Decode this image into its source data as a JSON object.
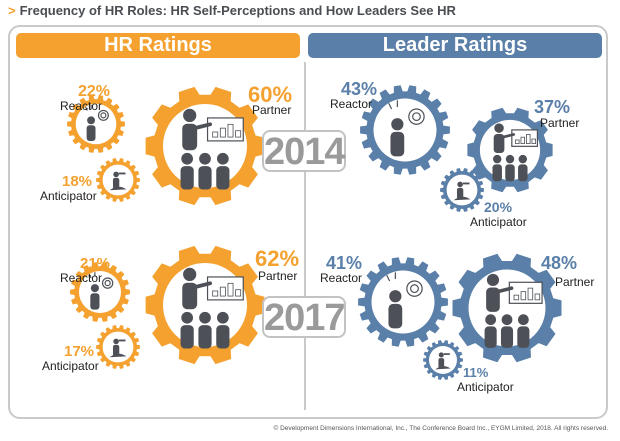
{
  "title": {
    "marker": ">",
    "text": "Frequency of HR Roles: HR Self-Perceptions and How Leaders See HR"
  },
  "colors": {
    "hr": "#f4a12f",
    "leader": "#5a7fa8",
    "icon": "#4d5157",
    "year": "#9a9a9a"
  },
  "headers": {
    "hr": "HR Ratings",
    "leader": "Leader Ratings"
  },
  "years": [
    "2014",
    "2017"
  ],
  "groups": [
    {
      "side": "hr",
      "year": "2014",
      "reactor": {
        "label": "Reactor",
        "pct": "22%"
      },
      "partner": {
        "label": "Partner",
        "pct": "60%"
      },
      "anticipator": {
        "label": "Anticipator",
        "pct": "18%"
      }
    },
    {
      "side": "leader",
      "year": "2014",
      "reactor": {
        "label": "Reactor",
        "pct": "43%"
      },
      "partner": {
        "label": "Partner",
        "pct": "37%"
      },
      "anticipator": {
        "label": "Anticipator",
        "pct": "20%"
      }
    },
    {
      "side": "hr",
      "year": "2017",
      "reactor": {
        "label": "Reactor",
        "pct": "21%"
      },
      "partner": {
        "label": "Partner",
        "pct": "62%"
      },
      "anticipator": {
        "label": "Anticipator",
        "pct": "17%"
      }
    },
    {
      "side": "leader",
      "year": "2017",
      "reactor": {
        "label": "Reactor",
        "pct": "41%"
      },
      "partner": {
        "label": "Partner",
        "pct": "48%"
      },
      "anticipator": {
        "label": "Anticipator",
        "pct": "11%"
      }
    }
  ],
  "icons": {
    "reactor": "frustrated-person-target-icon",
    "partner": "presenter-audience-icon",
    "anticipator": "person-telescope-climbing-icon"
  },
  "footer": "© Development Dimensions International, Inc., The Conference Board Inc., EYGM Limited, 2018. All rights reserved."
}
